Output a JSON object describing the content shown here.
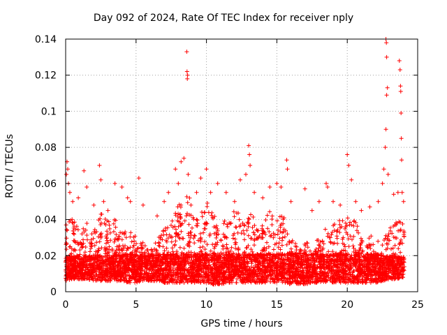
{
  "chart_data": {
    "type": "scatter",
    "title": "Day 092 of 2024, Rate Of TEC Index for receiver nply",
    "xlabel": "GPS time / hours",
    "ylabel": "ROTI / TECUs",
    "xlim": [
      0,
      25
    ],
    "ylim": [
      0,
      0.14
    ],
    "xticks": [
      "0",
      "5",
      "10",
      "15",
      "20",
      "25"
    ],
    "yticks": [
      "0",
      "0.02",
      "0.04",
      "0.06",
      "0.08",
      "0.1",
      "0.12",
      "0.14"
    ],
    "grid": true,
    "marker": "+",
    "color": "#ff0000",
    "series": [
      {
        "name": "",
        "points": [
          [
            0.05,
            0.065
          ],
          [
            0.1,
            0.072
          ],
          [
            0.15,
            0.068
          ],
          [
            0.2,
            0.06
          ],
          [
            0.3,
            0.055
          ],
          [
            0.5,
            0.05
          ],
          [
            0.9,
            0.052
          ],
          [
            1.3,
            0.067
          ],
          [
            1.5,
            0.058
          ],
          [
            2.0,
            0.048
          ],
          [
            2.4,
            0.07
          ],
          [
            2.5,
            0.062
          ],
          [
            2.7,
            0.05
          ],
          [
            3.0,
            0.045
          ],
          [
            3.5,
            0.06
          ],
          [
            4.0,
            0.058
          ],
          [
            4.4,
            0.052
          ],
          [
            4.6,
            0.05
          ],
          [
            5.2,
            0.063
          ],
          [
            5.5,
            0.048
          ],
          [
            6.5,
            0.042
          ],
          [
            7.0,
            0.05
          ],
          [
            7.3,
            0.055
          ],
          [
            7.8,
            0.068
          ],
          [
            8.0,
            0.06
          ],
          [
            8.2,
            0.072
          ],
          [
            8.4,
            0.074
          ],
          [
            8.6,
            0.133
          ],
          [
            8.62,
            0.122
          ],
          [
            8.64,
            0.118
          ],
          [
            8.66,
            0.12
          ],
          [
            8.7,
            0.065
          ],
          [
            9.3,
            0.055
          ],
          [
            9.6,
            0.063
          ],
          [
            10.0,
            0.068
          ],
          [
            10.3,
            0.055
          ],
          [
            10.8,
            0.06
          ],
          [
            11.4,
            0.055
          ],
          [
            12.0,
            0.05
          ],
          [
            12.4,
            0.062
          ],
          [
            12.8,
            0.065
          ],
          [
            13.0,
            0.081
          ],
          [
            13.05,
            0.076
          ],
          [
            13.1,
            0.07
          ],
          [
            13.4,
            0.055
          ],
          [
            14.0,
            0.052
          ],
          [
            14.5,
            0.058
          ],
          [
            15.0,
            0.06
          ],
          [
            15.3,
            0.058
          ],
          [
            15.7,
            0.073
          ],
          [
            15.75,
            0.068
          ],
          [
            16.0,
            0.05
          ],
          [
            17.0,
            0.057
          ],
          [
            17.5,
            0.045
          ],
          [
            18.0,
            0.05
          ],
          [
            18.5,
            0.06
          ],
          [
            18.6,
            0.058
          ],
          [
            19.0,
            0.05
          ],
          [
            19.5,
            0.048
          ],
          [
            20.0,
            0.076
          ],
          [
            20.1,
            0.07
          ],
          [
            20.3,
            0.062
          ],
          [
            20.6,
            0.05
          ],
          [
            21.0,
            0.045
          ],
          [
            21.6,
            0.047
          ],
          [
            22.2,
            0.05
          ],
          [
            22.5,
            0.06
          ],
          [
            22.6,
            0.068
          ],
          [
            22.7,
            0.08
          ],
          [
            22.75,
            0.09
          ],
          [
            22.8,
            0.109
          ],
          [
            22.85,
            0.113
          ],
          [
            22.75,
            0.14
          ],
          [
            22.78,
            0.138
          ],
          [
            22.8,
            0.13
          ],
          [
            22.9,
            0.065
          ],
          [
            23.3,
            0.054
          ],
          [
            23.6,
            0.055
          ],
          [
            23.7,
            0.128
          ],
          [
            23.75,
            0.123
          ],
          [
            23.78,
            0.114
          ],
          [
            23.8,
            0.111
          ],
          [
            23.82,
            0.099
          ],
          [
            23.84,
            0.085
          ],
          [
            23.86,
            0.073
          ],
          [
            23.9,
            0.055
          ],
          [
            24.0,
            0.05
          ]
        ],
        "envelope": {
          "x": [
            0,
            0.5,
            1,
            1.5,
            2,
            2.5,
            3,
            3.5,
            4,
            4.5,
            5,
            5.5,
            6,
            6.5,
            7,
            7.5,
            8,
            8.5,
            9,
            9.5,
            10,
            10.5,
            11,
            11.5,
            12,
            12.5,
            13,
            13.5,
            14,
            14.5,
            15,
            15.5,
            16,
            16.5,
            17,
            17.5,
            18,
            18.5,
            19,
            19.5,
            20,
            20.5,
            21,
            21.5,
            22,
            22.5,
            23,
            23.5,
            24
          ],
          "lower": [
            0.006,
            0.007,
            0.007,
            0.007,
            0.006,
            0.006,
            0.006,
            0.006,
            0.006,
            0.005,
            0.005,
            0.006,
            0.006,
            0.006,
            0.005,
            0.005,
            0.005,
            0.005,
            0.005,
            0.005,
            0.005,
            0.004,
            0.004,
            0.005,
            0.005,
            0.005,
            0.005,
            0.005,
            0.005,
            0.005,
            0.005,
            0.005,
            0.004,
            0.004,
            0.004,
            0.005,
            0.005,
            0.005,
            0.005,
            0.005,
            0.005,
            0.005,
            0.005,
            0.005,
            0.005,
            0.006,
            0.007,
            0.007,
            0.008
          ],
          "typical_upper": [
            0.045,
            0.04,
            0.035,
            0.038,
            0.035,
            0.045,
            0.04,
            0.042,
            0.035,
            0.04,
            0.03,
            0.028,
            0.022,
            0.03,
            0.035,
            0.04,
            0.048,
            0.055,
            0.05,
            0.045,
            0.05,
            0.045,
            0.04,
            0.042,
            0.045,
            0.045,
            0.045,
            0.04,
            0.038,
            0.045,
            0.045,
            0.042,
            0.035,
            0.025,
            0.028,
            0.025,
            0.03,
            0.04,
            0.042,
            0.04,
            0.045,
            0.04,
            0.035,
            0.033,
            0.03,
            0.028,
            0.035,
            0.04,
            0.04
          ],
          "density_peak": 0.015
        }
      }
    ]
  }
}
